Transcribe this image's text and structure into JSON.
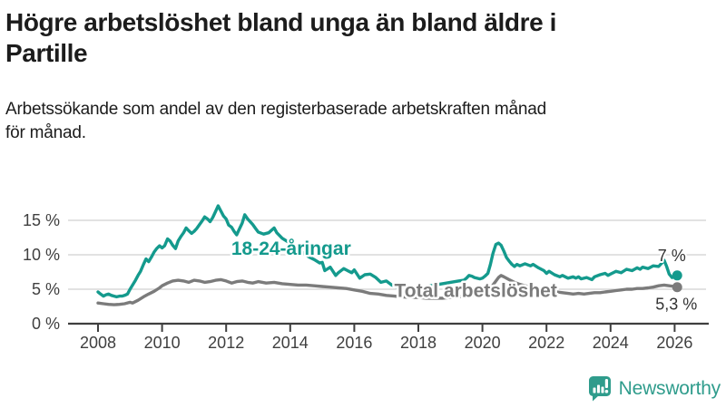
{
  "header": {
    "title_lines": [
      "Högre arbetslöshet bland unga än bland äldre i",
      "Partille"
    ],
    "subtitle_lines": [
      "Arbetssökande som andel av den registerbaserade arbetskraften månad",
      "för månad."
    ]
  },
  "footer": {
    "brand": "Newsworthy"
  },
  "colors": {
    "youth": "#149a8d",
    "total": "#7b7b7b",
    "axis": "#3f3f3f",
    "grid": "#d9d9d9",
    "value_label": "#333333",
    "brand_teal": "#2f9c8c"
  },
  "chart_data": {
    "type": "line",
    "unit": "%",
    "x_tick_years": [
      2008,
      2010,
      2012,
      2014,
      2016,
      2018,
      2020,
      2022,
      2024,
      2026
    ],
    "y_ticks": [
      {
        "value": 0,
        "label": "0 %"
      },
      {
        "value": 5,
        "label": "5 %"
      },
      {
        "value": 10,
        "label": "10 %"
      },
      {
        "value": 15,
        "label": "15 %"
      }
    ],
    "xlim": [
      2008,
      2026.2
    ],
    "ylim": [
      0,
      18.5
    ],
    "grid": true,
    "legend_position": "inline-labels",
    "series": [
      {
        "id": "youth",
        "name": "18-24-åringar",
        "color": "#149a8d",
        "end_value": 7.0,
        "end_value_label": "7 %",
        "label_pos": {
          "year": 2012.16,
          "pct": 10.0
        },
        "end_label_offset": {
          "dx": -6,
          "dy": -16
        },
        "points": [
          [
            2008.0,
            4.6
          ],
          [
            2008.08,
            4.3
          ],
          [
            2008.17,
            4.0
          ],
          [
            2008.25,
            4.2
          ],
          [
            2008.33,
            4.3
          ],
          [
            2008.42,
            4.1
          ],
          [
            2008.5,
            4.0
          ],
          [
            2008.58,
            3.9
          ],
          [
            2008.67,
            4.0
          ],
          [
            2008.75,
            4.0
          ],
          [
            2008.83,
            4.1
          ],
          [
            2008.92,
            4.3
          ],
          [
            2009.0,
            5.0
          ],
          [
            2009.08,
            5.6
          ],
          [
            2009.17,
            6.3
          ],
          [
            2009.25,
            7.0
          ],
          [
            2009.33,
            7.6
          ],
          [
            2009.42,
            8.6
          ],
          [
            2009.5,
            9.4
          ],
          [
            2009.58,
            9.0
          ],
          [
            2009.67,
            9.7
          ],
          [
            2009.75,
            10.4
          ],
          [
            2009.83,
            10.9
          ],
          [
            2009.92,
            11.3
          ],
          [
            2010.0,
            11.0
          ],
          [
            2010.08,
            11.3
          ],
          [
            2010.17,
            12.3
          ],
          [
            2010.25,
            12.0
          ],
          [
            2010.33,
            11.4
          ],
          [
            2010.42,
            10.9
          ],
          [
            2010.5,
            12.0
          ],
          [
            2010.58,
            12.6
          ],
          [
            2010.67,
            13.2
          ],
          [
            2010.75,
            13.9
          ],
          [
            2010.83,
            13.5
          ],
          [
            2010.92,
            13.1
          ],
          [
            2011.0,
            13.4
          ],
          [
            2011.08,
            13.8
          ],
          [
            2011.17,
            14.4
          ],
          [
            2011.25,
            14.9
          ],
          [
            2011.33,
            15.5
          ],
          [
            2011.42,
            15.2
          ],
          [
            2011.5,
            14.8
          ],
          [
            2011.58,
            15.4
          ],
          [
            2011.67,
            16.3
          ],
          [
            2011.75,
            17.1
          ],
          [
            2011.83,
            16.4
          ],
          [
            2011.92,
            15.6
          ],
          [
            2012.0,
            15.2
          ],
          [
            2012.08,
            14.3
          ],
          [
            2012.17,
            14.0
          ],
          [
            2012.25,
            13.4
          ],
          [
            2012.33,
            12.9
          ],
          [
            2012.42,
            13.8
          ],
          [
            2012.5,
            14.6
          ],
          [
            2012.58,
            15.8
          ],
          [
            2012.67,
            15.2
          ],
          [
            2012.75,
            14.8
          ],
          [
            2012.83,
            14.4
          ],
          [
            2012.92,
            13.8
          ],
          [
            2013.0,
            13.3
          ],
          [
            2013.17,
            13.0
          ],
          [
            2013.33,
            13.2
          ],
          [
            2013.5,
            13.9
          ],
          [
            2013.58,
            13.2
          ],
          [
            2013.75,
            12.4
          ],
          [
            2013.92,
            11.9
          ],
          [
            2014.08,
            11.4
          ],
          [
            2014.25,
            10.8
          ],
          [
            2014.42,
            10.2
          ],
          [
            2014.58,
            9.7
          ],
          [
            2014.75,
            9.3
          ],
          [
            2014.92,
            8.8
          ],
          [
            2015.0,
            8.9
          ],
          [
            2015.08,
            7.7
          ],
          [
            2015.25,
            8.2
          ],
          [
            2015.42,
            7.0
          ],
          [
            2015.5,
            7.4
          ],
          [
            2015.67,
            8.0
          ],
          [
            2015.83,
            7.6
          ],
          [
            2015.92,
            7.4
          ],
          [
            2016.0,
            7.8
          ],
          [
            2016.17,
            6.6
          ],
          [
            2016.33,
            7.1
          ],
          [
            2016.5,
            7.2
          ],
          [
            2016.67,
            6.7
          ],
          [
            2016.83,
            6.0
          ],
          [
            2017.0,
            6.2
          ],
          [
            2017.17,
            5.6
          ],
          [
            2017.33,
            5.3
          ],
          [
            2017.5,
            4.9
          ],
          [
            2017.75,
            5.0
          ],
          [
            2018.0,
            5.2
          ],
          [
            2018.25,
            5.4
          ],
          [
            2018.5,
            5.6
          ],
          [
            2018.75,
            5.8
          ],
          [
            2019.0,
            6.0
          ],
          [
            2019.25,
            6.2
          ],
          [
            2019.42,
            6.3
          ],
          [
            2019.5,
            6.6
          ],
          [
            2019.58,
            7.0
          ],
          [
            2019.67,
            6.9
          ],
          [
            2019.75,
            6.7
          ],
          [
            2019.92,
            6.5
          ],
          [
            2020.0,
            6.6
          ],
          [
            2020.08,
            6.9
          ],
          [
            2020.17,
            7.3
          ],
          [
            2020.25,
            8.6
          ],
          [
            2020.33,
            10.2
          ],
          [
            2020.42,
            11.5
          ],
          [
            2020.5,
            11.7
          ],
          [
            2020.58,
            11.4
          ],
          [
            2020.67,
            10.5
          ],
          [
            2020.75,
            9.6
          ],
          [
            2020.83,
            9.1
          ],
          [
            2020.92,
            8.6
          ],
          [
            2021.0,
            8.3
          ],
          [
            2021.08,
            8.6
          ],
          [
            2021.17,
            8.4
          ],
          [
            2021.33,
            8.7
          ],
          [
            2021.5,
            8.4
          ],
          [
            2021.58,
            8.6
          ],
          [
            2021.75,
            8.1
          ],
          [
            2021.92,
            7.7
          ],
          [
            2022.0,
            7.3
          ],
          [
            2022.08,
            7.6
          ],
          [
            2022.25,
            7.1
          ],
          [
            2022.42,
            6.8
          ],
          [
            2022.5,
            7.0
          ],
          [
            2022.67,
            6.6
          ],
          [
            2022.83,
            6.8
          ],
          [
            2022.92,
            6.6
          ],
          [
            2023.0,
            6.8
          ],
          [
            2023.08,
            6.5
          ],
          [
            2023.25,
            6.7
          ],
          [
            2023.42,
            6.4
          ],
          [
            2023.5,
            6.8
          ],
          [
            2023.67,
            7.1
          ],
          [
            2023.83,
            7.3
          ],
          [
            2023.92,
            7.0
          ],
          [
            2024.0,
            7.2
          ],
          [
            2024.17,
            7.6
          ],
          [
            2024.33,
            7.4
          ],
          [
            2024.5,
            7.9
          ],
          [
            2024.67,
            7.7
          ],
          [
            2024.83,
            8.1
          ],
          [
            2024.92,
            7.9
          ],
          [
            2025.0,
            8.2
          ],
          [
            2025.17,
            8.0
          ],
          [
            2025.33,
            8.4
          ],
          [
            2025.5,
            8.3
          ],
          [
            2025.58,
            8.7
          ],
          [
            2025.67,
            9.2
          ],
          [
            2025.75,
            8.3
          ],
          [
            2025.83,
            7.2
          ],
          [
            2025.92,
            6.7
          ],
          [
            2026.0,
            6.8
          ],
          [
            2026.08,
            7.0
          ]
        ]
      },
      {
        "id": "total",
        "name": "Total arbetslöshet",
        "color": "#7b7b7b",
        "end_value": 5.3,
        "end_value_label": "5,3 %",
        "label_pos": {
          "year": 2017.25,
          "pct": 3.85
        },
        "end_label_offset": {
          "dx": -1,
          "dy": 25
        },
        "points": [
          [
            2008.0,
            3.0
          ],
          [
            2008.17,
            2.9
          ],
          [
            2008.33,
            2.8
          ],
          [
            2008.5,
            2.75
          ],
          [
            2008.67,
            2.8
          ],
          [
            2008.83,
            2.9
          ],
          [
            2009.0,
            3.1
          ],
          [
            2009.08,
            3.0
          ],
          [
            2009.25,
            3.4
          ],
          [
            2009.42,
            3.9
          ],
          [
            2009.58,
            4.3
          ],
          [
            2009.75,
            4.7
          ],
          [
            2009.92,
            5.2
          ],
          [
            2010.0,
            5.5
          ],
          [
            2010.17,
            5.9
          ],
          [
            2010.33,
            6.2
          ],
          [
            2010.5,
            6.3
          ],
          [
            2010.67,
            6.2
          ],
          [
            2010.83,
            6.0
          ],
          [
            2011.0,
            6.3
          ],
          [
            2011.17,
            6.2
          ],
          [
            2011.33,
            6.0
          ],
          [
            2011.5,
            6.1
          ],
          [
            2011.67,
            6.3
          ],
          [
            2011.83,
            6.4
          ],
          [
            2012.0,
            6.2
          ],
          [
            2012.17,
            5.9
          ],
          [
            2012.33,
            6.1
          ],
          [
            2012.5,
            6.2
          ],
          [
            2012.67,
            6.0
          ],
          [
            2012.83,
            5.9
          ],
          [
            2013.0,
            6.1
          ],
          [
            2013.25,
            5.9
          ],
          [
            2013.5,
            6.0
          ],
          [
            2013.75,
            5.8
          ],
          [
            2014.0,
            5.7
          ],
          [
            2014.25,
            5.6
          ],
          [
            2014.5,
            5.6
          ],
          [
            2014.75,
            5.5
          ],
          [
            2015.0,
            5.4
          ],
          [
            2015.25,
            5.3
          ],
          [
            2015.5,
            5.2
          ],
          [
            2015.75,
            5.1
          ],
          [
            2016.0,
            4.9
          ],
          [
            2016.25,
            4.7
          ],
          [
            2016.5,
            4.4
          ],
          [
            2016.75,
            4.3
          ],
          [
            2017.0,
            4.1
          ],
          [
            2017.25,
            4.0
          ],
          [
            2017.5,
            3.9
          ],
          [
            2017.75,
            3.8
          ],
          [
            2018.0,
            3.8
          ],
          [
            2018.25,
            3.7
          ],
          [
            2018.5,
            3.7
          ],
          [
            2018.75,
            3.7
          ],
          [
            2019.0,
            3.8
          ],
          [
            2019.25,
            3.9
          ],
          [
            2019.5,
            4.0
          ],
          [
            2019.75,
            4.1
          ],
          [
            2019.92,
            4.2
          ],
          [
            2020.0,
            4.3
          ],
          [
            2020.17,
            4.7
          ],
          [
            2020.33,
            5.6
          ],
          [
            2020.5,
            6.7
          ],
          [
            2020.58,
            7.0
          ],
          [
            2020.67,
            6.8
          ],
          [
            2020.83,
            6.4
          ],
          [
            2021.0,
            6.0
          ],
          [
            2021.17,
            5.7
          ],
          [
            2021.33,
            5.5
          ],
          [
            2021.5,
            5.3
          ],
          [
            2021.67,
            5.2
          ],
          [
            2021.83,
            5.0
          ],
          [
            2022.0,
            4.8
          ],
          [
            2022.17,
            4.7
          ],
          [
            2022.33,
            4.6
          ],
          [
            2022.5,
            4.5
          ],
          [
            2022.67,
            4.4
          ],
          [
            2022.83,
            4.3
          ],
          [
            2023.0,
            4.4
          ],
          [
            2023.17,
            4.3
          ],
          [
            2023.33,
            4.4
          ],
          [
            2023.5,
            4.5
          ],
          [
            2023.67,
            4.5
          ],
          [
            2023.83,
            4.6
          ],
          [
            2024.0,
            4.7
          ],
          [
            2024.17,
            4.8
          ],
          [
            2024.33,
            4.9
          ],
          [
            2024.5,
            5.0
          ],
          [
            2024.67,
            5.0
          ],
          [
            2024.83,
            5.1
          ],
          [
            2025.0,
            5.1
          ],
          [
            2025.17,
            5.2
          ],
          [
            2025.33,
            5.3
          ],
          [
            2025.5,
            5.5
          ],
          [
            2025.67,
            5.6
          ],
          [
            2025.83,
            5.5
          ],
          [
            2026.0,
            5.4
          ],
          [
            2026.08,
            5.3
          ]
        ]
      }
    ]
  }
}
